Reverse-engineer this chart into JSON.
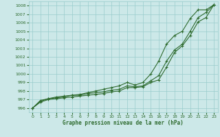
{
  "xlabel": "Graphe pression niveau de la mer (hPa)",
  "ylim": [
    995.5,
    1008.5
  ],
  "xlim": [
    -0.5,
    23.5
  ],
  "yticks": [
    996,
    997,
    998,
    999,
    1000,
    1001,
    1002,
    1003,
    1004,
    1005,
    1006,
    1007,
    1008
  ],
  "xticks": [
    0,
    1,
    2,
    3,
    4,
    5,
    6,
    7,
    8,
    9,
    10,
    11,
    12,
    13,
    14,
    15,
    16,
    17,
    18,
    19,
    20,
    21,
    22,
    23
  ],
  "bg_color": "#cce8e8",
  "grid_color": "#99cccc",
  "line_color": "#2d6a2d",
  "series1": [
    996.0,
    996.7,
    997.0,
    997.1,
    997.2,
    997.3,
    997.4,
    997.5,
    997.6,
    997.7,
    997.9,
    998.0,
    998.4,
    998.4,
    998.5,
    999.0,
    999.3,
    1000.8,
    1002.5,
    1003.3,
    1004.5,
    1006.1,
    1006.6,
    1008.1
  ],
  "series2": [
    996.0,
    996.8,
    997.1,
    997.2,
    997.3,
    997.5,
    997.5,
    997.7,
    997.8,
    997.9,
    998.1,
    998.2,
    998.6,
    998.5,
    998.6,
    999.2,
    999.8,
    1001.5,
    1002.8,
    1003.5,
    1005.0,
    1006.6,
    1007.2,
    1008.1
  ],
  "series3": [
    996.0,
    996.9,
    997.1,
    997.3,
    997.4,
    997.5,
    997.6,
    997.8,
    998.0,
    998.2,
    998.4,
    998.6,
    999.0,
    998.7,
    999.0,
    1000.0,
    1001.5,
    1003.5,
    1004.5,
    1005.0,
    1006.5,
    1007.5,
    1007.5,
    1008.1
  ],
  "marker": "+",
  "markersize": 3.5,
  "linewidth": 0.8
}
